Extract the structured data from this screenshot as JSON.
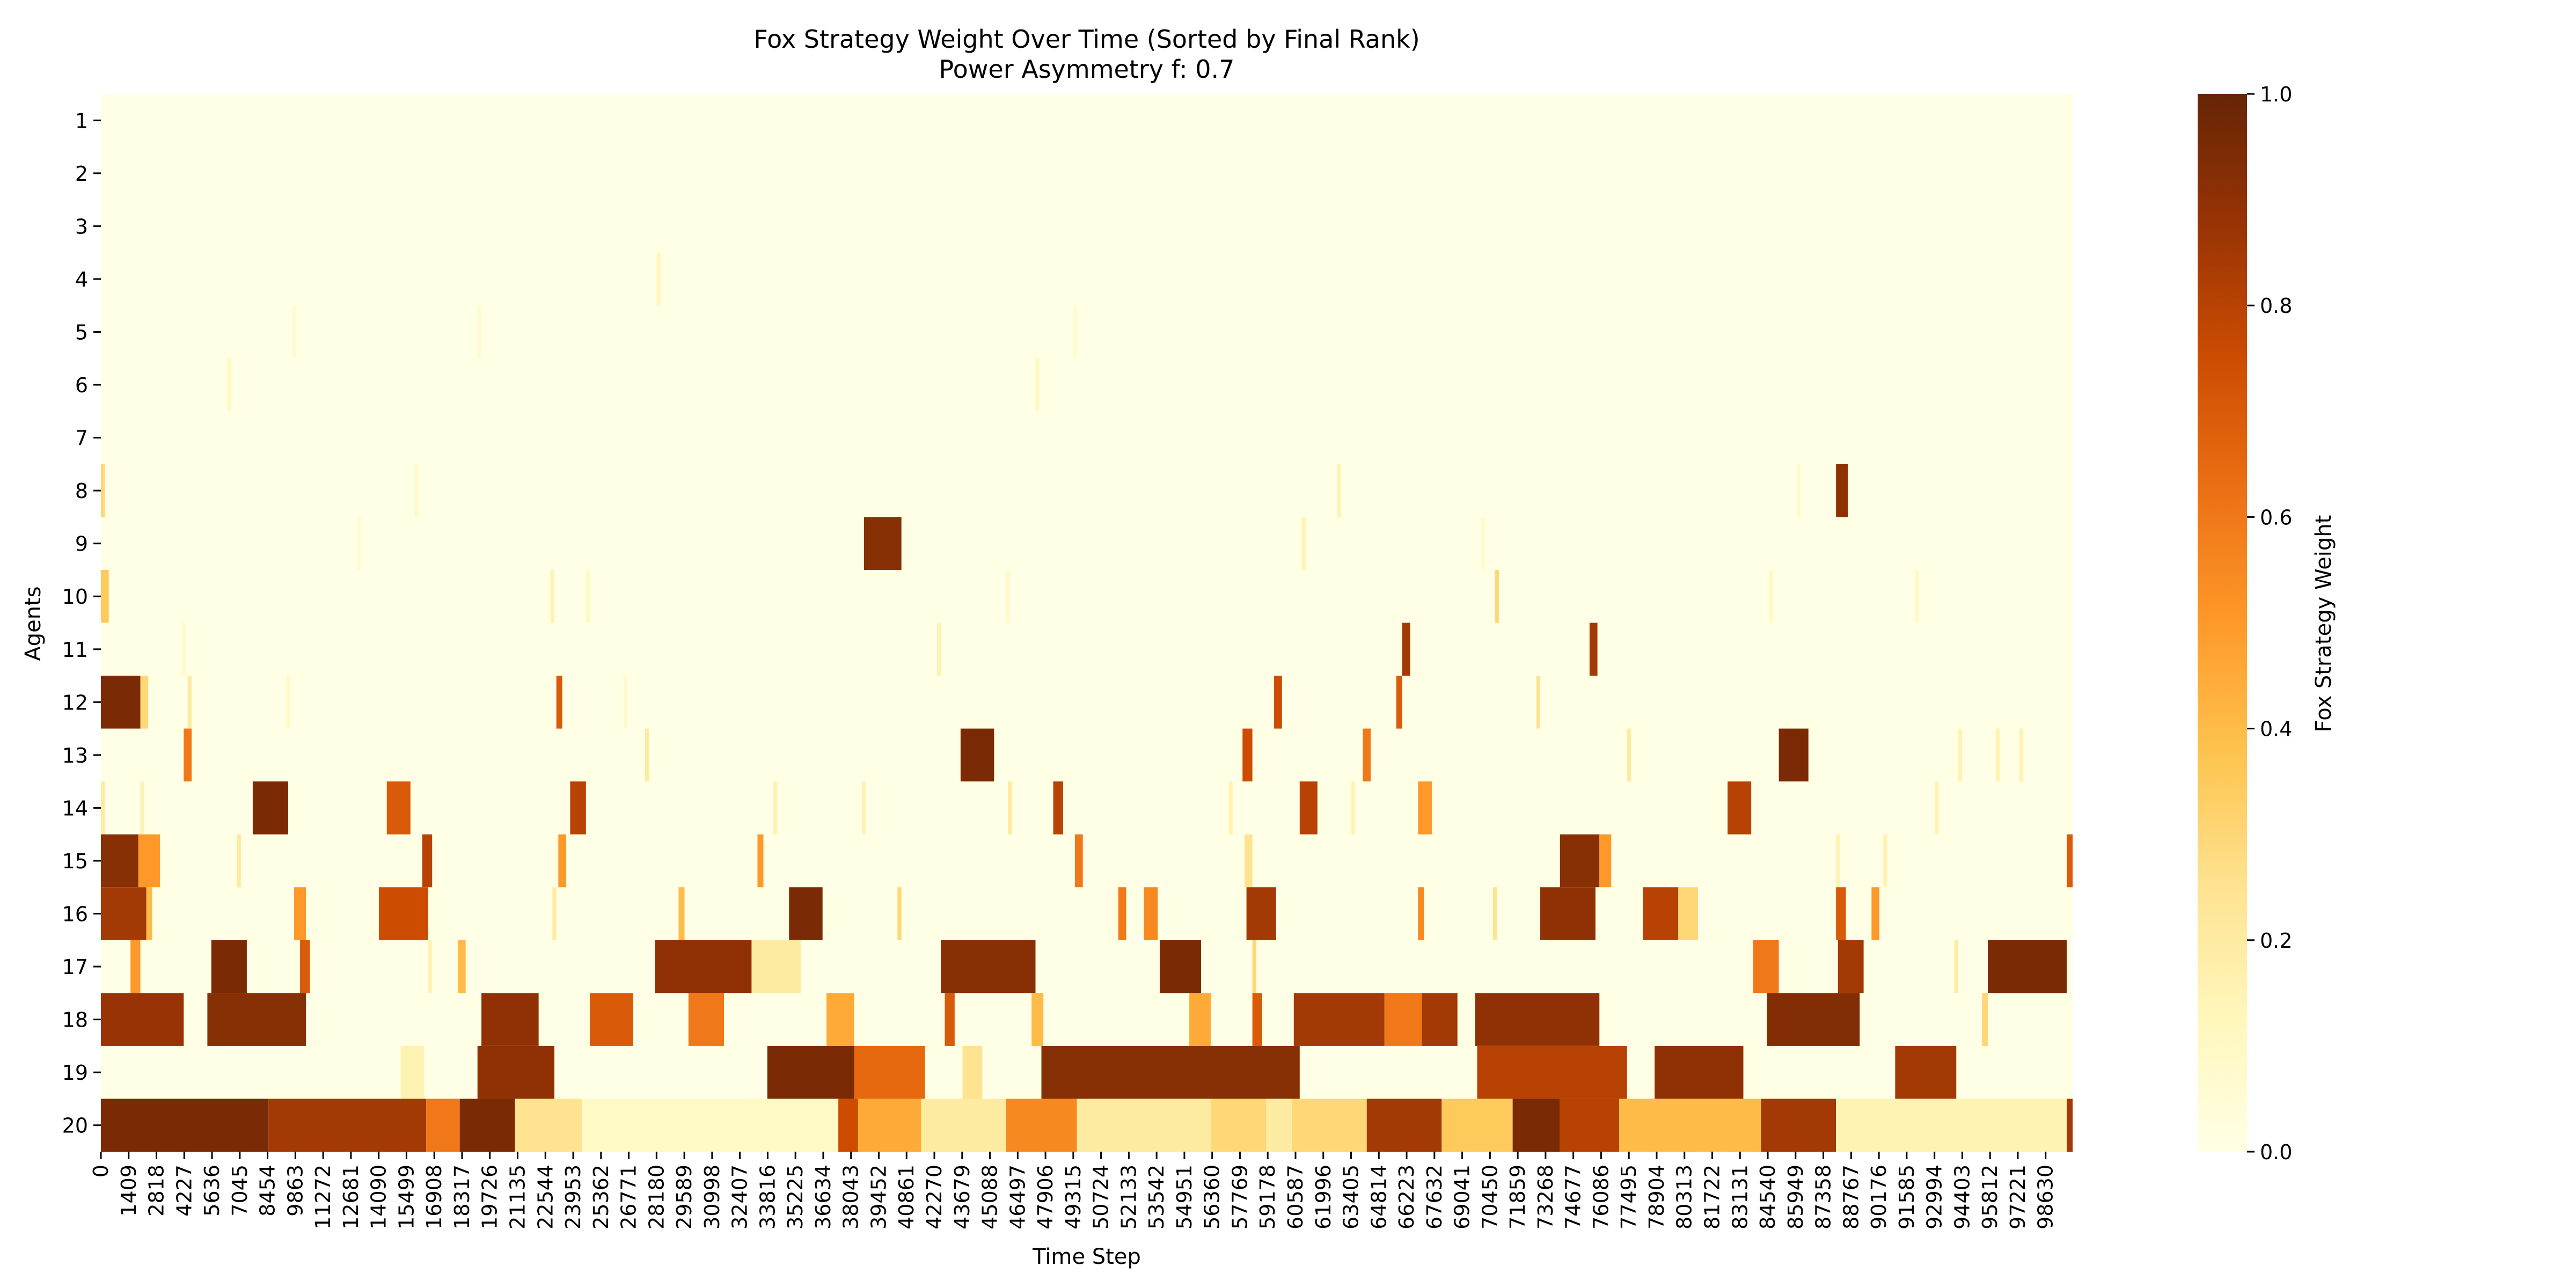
{
  "chart_data": {
    "type": "heatmap",
    "title": "Fox Strategy Weight Over Time (Sorted by Final Rank)",
    "subtitle": "Power Asymmetry f: 0.7",
    "xlabel": "Time Step",
    "ylabel": "Agents",
    "colorbar_label": "Fox Strategy Weight",
    "x_domain": [
      0,
      99999
    ],
    "x_tick_labels": [
      "0",
      "1409",
      "2818",
      "4227",
      "5636",
      "7045",
      "8454",
      "9863",
      "11272",
      "12681",
      "14090",
      "15499",
      "16908",
      "18317",
      "19726",
      "21135",
      "22544",
      "23953",
      "25362",
      "26771",
      "28180",
      "29589",
      "30998",
      "32407",
      "33816",
      "35225",
      "36634",
      "38043",
      "39452",
      "40861",
      "42270",
      "43679",
      "45088",
      "46497",
      "47906",
      "49315",
      "50724",
      "52133",
      "53542",
      "54951",
      "56360",
      "57769",
      "59178",
      "60587",
      "61996",
      "63405",
      "64814",
      "66223",
      "67632",
      "69041",
      "70450",
      "71859",
      "73268",
      "74677",
      "76086",
      "77495",
      "78904",
      "80313",
      "81722",
      "83131",
      "84540",
      "85949",
      "87358",
      "88767",
      "90176",
      "91585",
      "92994",
      "94403",
      "95812",
      "97221",
      "98630"
    ],
    "y_tick_labels": [
      "1",
      "2",
      "3",
      "4",
      "5",
      "6",
      "7",
      "8",
      "9",
      "10",
      "11",
      "12",
      "13",
      "14",
      "15",
      "16",
      "17",
      "18",
      "19",
      "20"
    ],
    "colorbar_ticks": [
      "0.0",
      "0.2",
      "0.4",
      "0.6",
      "0.8",
      "1.0"
    ],
    "value_range": [
      0,
      1
    ],
    "colormap": "YlOrBr",
    "colormap_stops": [
      "#ffffe5",
      "#fff7bc",
      "#fee391",
      "#fec44f",
      "#fe9929",
      "#ec7014",
      "#cc4c02",
      "#993404",
      "#662506"
    ],
    "grid": false,
    "rows": [
      {
        "agent": "1",
        "segments": []
      },
      {
        "agent": "2",
        "segments": []
      },
      {
        "agent": "3",
        "segments": []
      },
      {
        "agent": "4",
        "segments": [
          [
            28180,
            28400,
            0.12
          ]
        ]
      },
      {
        "agent": "5",
        "segments": [
          [
            9700,
            9900,
            0.06
          ],
          [
            19100,
            19300,
            0.06
          ],
          [
            49300,
            49500,
            0.06
          ]
        ]
      },
      {
        "agent": "6",
        "segments": [
          [
            6400,
            6600,
            0.1
          ],
          [
            47400,
            47600,
            0.1
          ]
        ]
      },
      {
        "agent": "7",
        "segments": []
      },
      {
        "agent": "8",
        "segments": [
          [
            0,
            200,
            0.3
          ],
          [
            15900,
            16100,
            0.08
          ],
          [
            62700,
            62900,
            0.15
          ],
          [
            86000,
            86200,
            0.08
          ],
          [
            88000,
            88600,
            0.9
          ]
        ]
      },
      {
        "agent": "9",
        "segments": [
          [
            13000,
            13200,
            0.06
          ],
          [
            38700,
            40600,
            0.92
          ],
          [
            60900,
            61100,
            0.15
          ],
          [
            70000,
            70200,
            0.06
          ]
        ]
      },
      {
        "agent": "10",
        "segments": [
          [
            0,
            400,
            0.35
          ],
          [
            22800,
            23000,
            0.15
          ],
          [
            24600,
            24800,
            0.1
          ],
          [
            45900,
            46100,
            0.08
          ],
          [
            70700,
            70900,
            0.3
          ],
          [
            84600,
            84800,
            0.1
          ],
          [
            92000,
            92200,
            0.1
          ]
        ]
      },
      {
        "agent": "11",
        "segments": [
          [
            4100,
            4300,
            0.08
          ],
          [
            42400,
            42600,
            0.15
          ],
          [
            66000,
            66400,
            0.85
          ],
          [
            75500,
            75900,
            0.85
          ]
        ]
      },
      {
        "agent": "12",
        "segments": [
          [
            0,
            2000,
            0.95
          ],
          [
            2000,
            2400,
            0.3
          ],
          [
            4400,
            4600,
            0.2
          ],
          [
            9400,
            9600,
            0.1
          ],
          [
            23100,
            23400,
            0.7
          ],
          [
            26500,
            26700,
            0.08
          ],
          [
            59500,
            59900,
            0.75
          ],
          [
            65700,
            66000,
            0.7
          ],
          [
            72800,
            73000,
            0.25
          ]
        ]
      },
      {
        "agent": "13",
        "segments": [
          [
            4200,
            4600,
            0.6
          ],
          [
            27600,
            27800,
            0.2
          ],
          [
            43600,
            45300,
            0.95
          ],
          [
            57900,
            58400,
            0.75
          ],
          [
            64000,
            64400,
            0.6
          ],
          [
            77400,
            77600,
            0.2
          ],
          [
            85100,
            86600,
            0.95
          ],
          [
            94200,
            94400,
            0.15
          ],
          [
            96100,
            96300,
            0.15
          ],
          [
            97300,
            97500,
            0.15
          ]
        ]
      },
      {
        "agent": "14",
        "segments": [
          [
            0,
            200,
            0.2
          ],
          [
            2000,
            2200,
            0.15
          ],
          [
            7700,
            9500,
            0.95
          ],
          [
            14500,
            15700,
            0.7
          ],
          [
            23800,
            24600,
            0.8
          ],
          [
            34100,
            34300,
            0.15
          ],
          [
            38600,
            38800,
            0.15
          ],
          [
            46000,
            46200,
            0.2
          ],
          [
            48300,
            48800,
            0.8
          ],
          [
            57200,
            57400,
            0.15
          ],
          [
            60800,
            61700,
            0.8
          ],
          [
            63400,
            63600,
            0.15
          ],
          [
            66800,
            67500,
            0.5
          ],
          [
            82500,
            83700,
            0.8
          ],
          [
            93000,
            93200,
            0.15
          ]
        ]
      },
      {
        "agent": "15",
        "segments": [
          [
            0,
            1900,
            0.92
          ],
          [
            1900,
            3000,
            0.5
          ],
          [
            6900,
            7100,
            0.2
          ],
          [
            16300,
            16800,
            0.8
          ],
          [
            23200,
            23600,
            0.5
          ],
          [
            33300,
            33600,
            0.5
          ],
          [
            49400,
            49800,
            0.6
          ],
          [
            58000,
            58400,
            0.25
          ],
          [
            74000,
            76000,
            0.92
          ],
          [
            76000,
            76600,
            0.5
          ],
          [
            88000,
            88200,
            0.15
          ],
          [
            90400,
            90600,
            0.15
          ],
          [
            99700,
            99999,
            0.7
          ]
        ]
      },
      {
        "agent": "16",
        "segments": [
          [
            0,
            2300,
            0.85
          ],
          [
            2300,
            2600,
            0.4
          ],
          [
            9800,
            10400,
            0.5
          ],
          [
            14100,
            16600,
            0.75
          ],
          [
            22900,
            23100,
            0.2
          ],
          [
            29300,
            29600,
            0.4
          ],
          [
            34900,
            36600,
            0.95
          ],
          [
            40400,
            40600,
            0.3
          ],
          [
            51600,
            52000,
            0.6
          ],
          [
            52900,
            53600,
            0.55
          ],
          [
            58100,
            59600,
            0.85
          ],
          [
            66800,
            67100,
            0.55
          ],
          [
            70600,
            70800,
            0.25
          ],
          [
            73000,
            75800,
            0.9
          ],
          [
            78200,
            80000,
            0.8
          ],
          [
            80000,
            81000,
            0.3
          ],
          [
            88000,
            88500,
            0.7
          ],
          [
            89800,
            90200,
            0.5
          ]
        ]
      },
      {
        "agent": "17",
        "segments": [
          [
            1500,
            2000,
            0.5
          ],
          [
            5600,
            7400,
            0.95
          ],
          [
            10100,
            10600,
            0.7
          ],
          [
            16600,
            16800,
            0.15
          ],
          [
            18100,
            18500,
            0.4
          ],
          [
            28100,
            33000,
            0.9
          ],
          [
            33000,
            35500,
            0.2
          ],
          [
            42600,
            47400,
            0.92
          ],
          [
            53700,
            55800,
            0.95
          ],
          [
            58400,
            58600,
            0.3
          ],
          [
            83800,
            85100,
            0.6
          ],
          [
            88100,
            89400,
            0.85
          ],
          [
            94000,
            94200,
            0.2
          ],
          [
            95700,
            99700,
            0.95
          ]
        ]
      },
      {
        "agent": "18",
        "segments": [
          [
            0,
            4200,
            0.88
          ],
          [
            5400,
            10400,
            0.92
          ],
          [
            19300,
            22200,
            0.9
          ],
          [
            24800,
            27000,
            0.7
          ],
          [
            29800,
            31600,
            0.6
          ],
          [
            36800,
            38200,
            0.45
          ],
          [
            42800,
            43300,
            0.7
          ],
          [
            47200,
            47800,
            0.4
          ],
          [
            55200,
            56300,
            0.45
          ],
          [
            58400,
            58900,
            0.7
          ],
          [
            60500,
            65100,
            0.85
          ],
          [
            65100,
            67000,
            0.6
          ],
          [
            67000,
            68800,
            0.85
          ],
          [
            69700,
            76000,
            0.9
          ],
          [
            84500,
            89200,
            0.93
          ],
          [
            95400,
            95700,
            0.3
          ]
        ]
      },
      {
        "agent": "19",
        "segments": [
          [
            15200,
            16400,
            0.15
          ],
          [
            19100,
            23000,
            0.9
          ],
          [
            33800,
            38200,
            0.95
          ],
          [
            38200,
            41800,
            0.65
          ],
          [
            43700,
            44700,
            0.25
          ],
          [
            47700,
            60800,
            0.92
          ],
          [
            69800,
            77400,
            0.8
          ],
          [
            78800,
            83300,
            0.9
          ],
          [
            91000,
            94100,
            0.85
          ]
        ]
      },
      {
        "agent": "20",
        "segments": [
          [
            0,
            8500,
            0.95
          ],
          [
            8500,
            16500,
            0.85
          ],
          [
            16500,
            18200,
            0.6
          ],
          [
            18200,
            21000,
            0.95
          ],
          [
            21000,
            24400,
            0.25
          ],
          [
            24400,
            37400,
            0.1
          ],
          [
            37400,
            38400,
            0.75
          ],
          [
            38400,
            41600,
            0.45
          ],
          [
            41600,
            45900,
            0.2
          ],
          [
            45900,
            49500,
            0.55
          ],
          [
            49500,
            56300,
            0.2
          ],
          [
            56300,
            59100,
            0.3
          ],
          [
            59100,
            60400,
            0.2
          ],
          [
            60400,
            64200,
            0.3
          ],
          [
            64200,
            68000,
            0.85
          ],
          [
            68000,
            71600,
            0.35
          ],
          [
            71600,
            74000,
            0.95
          ],
          [
            74000,
            77000,
            0.8
          ],
          [
            77000,
            84200,
            0.4
          ],
          [
            84200,
            88000,
            0.85
          ],
          [
            88000,
            99700,
            0.15
          ],
          [
            99700,
            99999,
            0.85
          ]
        ]
      }
    ]
  }
}
